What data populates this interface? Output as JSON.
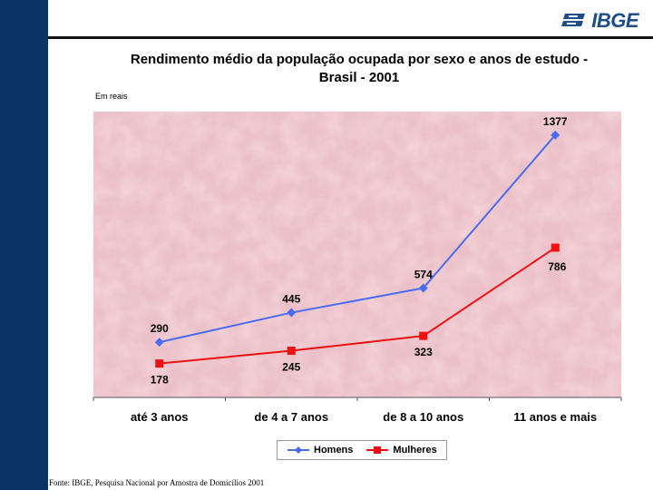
{
  "logo": {
    "text": "IBGE"
  },
  "chart_data": {
    "type": "line",
    "title_line1": "Rendimento médio da população ocupada por sexo e anos de estudo -",
    "title_line2": "Brasil - 2001",
    "ylabel": "Em reais",
    "categories": [
      "até 3 anos",
      "de 4 a 7 anos",
      "de 8 a 10 anos",
      "11 anos e mais"
    ],
    "ylim": [
      0,
      1500
    ],
    "grid": false,
    "legend_placement": "bottom",
    "series": [
      {
        "name": "Homens",
        "values": [
          290,
          445,
          574,
          1377
        ],
        "color": "#4a6cf0",
        "marker": "diamond"
      },
      {
        "name": "Mulheres",
        "values": [
          178,
          245,
          323,
          786
        ],
        "color": "#ee1111",
        "marker": "square"
      }
    ],
    "plot_background": "#ecc0c8"
  },
  "footer": {
    "source": "Fonte: IBGE, Pesquisa Nacional por Amostra de Domicílios 2001"
  }
}
